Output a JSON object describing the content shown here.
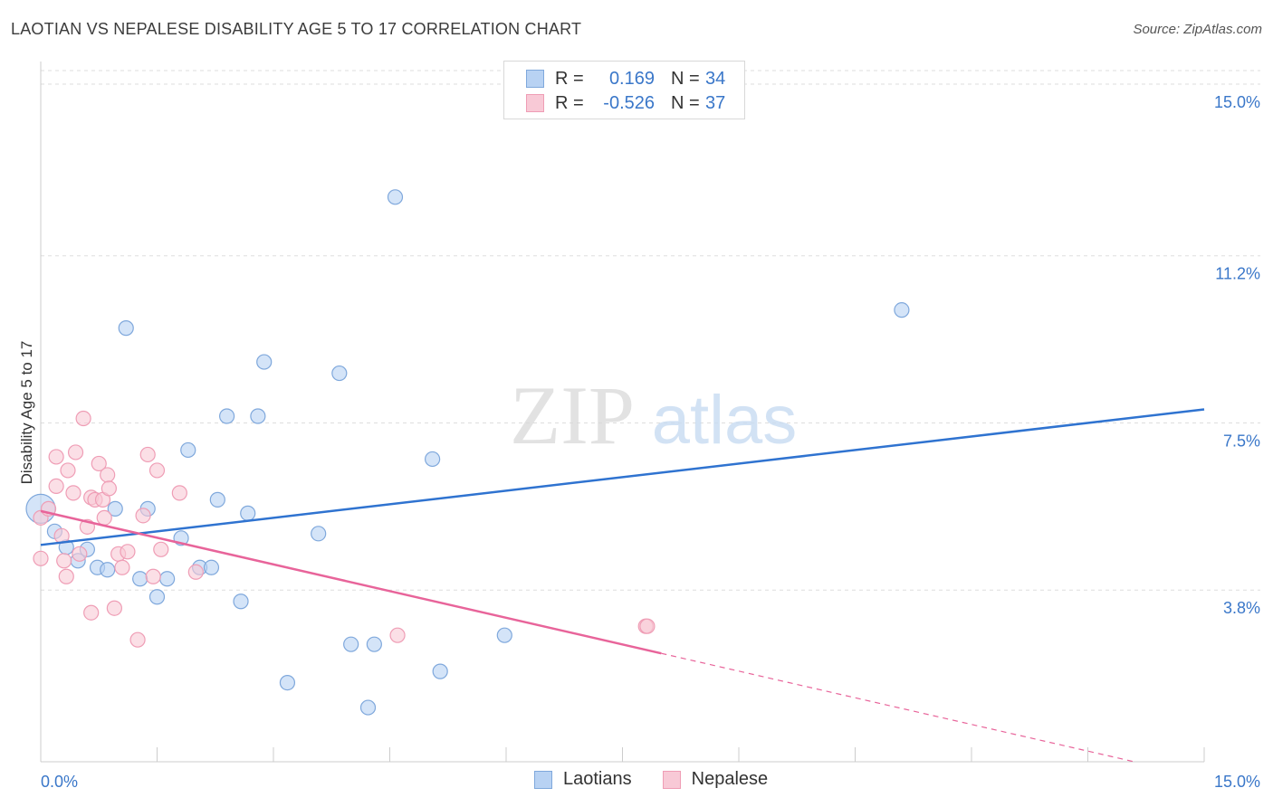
{
  "header": {
    "title": "LAOTIAN VS NEPALESE DISABILITY AGE 5 TO 17 CORRELATION CHART",
    "source": "Source: ZipAtlas.com"
  },
  "watermark": {
    "zip": "ZIP",
    "atlas": "atlas"
  },
  "colors": {
    "laotian_fill": "#b8d2f3",
    "laotian_stroke": "#7fa8dc",
    "laotian_line": "#2f73d0",
    "nepalese_fill": "#f8c9d6",
    "nepalese_stroke": "#ef9db5",
    "nepalese_line": "#e8649a",
    "value_text": "#3a77c9"
  },
  "legend_top": {
    "rows": [
      {
        "r_label": "R =",
        "r_value": "0.169",
        "n_label": "N =",
        "n_value": "34"
      },
      {
        "r_label": "R =",
        "r_value": "-0.526",
        "n_label": "N =",
        "n_value": "37"
      }
    ]
  },
  "legend_bottom": {
    "items": [
      "Laotians",
      "Nepalese"
    ]
  },
  "chart_data": {
    "type": "scatter",
    "title": "LAOTIAN VS NEPALESE DISABILITY AGE 5 TO 17 CORRELATION CHART",
    "xlabel": "",
    "ylabel": "Disability Age 5 to 17",
    "xlim": [
      0,
      15
    ],
    "ylim": [
      0,
      15.3
    ],
    "x_tick_labels": [
      "0.0%",
      "15.0%"
    ],
    "y_ticks": [
      3.8,
      7.5,
      11.2,
      15.0
    ],
    "y_tick_labels": [
      "3.8%",
      "7.5%",
      "11.2%",
      "15.0%"
    ],
    "grid": "horizontal dashed",
    "legend_position": "top-center",
    "series": [
      {
        "name": "Laotians",
        "points": [
          [
            0.0,
            5.6
          ],
          [
            0.18,
            5.1
          ],
          [
            0.33,
            4.75
          ],
          [
            0.48,
            4.45
          ],
          [
            0.6,
            4.7
          ],
          [
            0.73,
            4.3
          ],
          [
            0.86,
            4.25
          ],
          [
            0.96,
            5.6
          ],
          [
            1.1,
            9.6
          ],
          [
            1.28,
            4.05
          ],
          [
            1.38,
            5.6
          ],
          [
            1.5,
            3.65
          ],
          [
            1.63,
            4.05
          ],
          [
            1.81,
            4.95
          ],
          [
            1.9,
            6.9
          ],
          [
            2.05,
            4.3
          ],
          [
            2.2,
            4.3
          ],
          [
            2.28,
            5.8
          ],
          [
            2.4,
            7.65
          ],
          [
            2.58,
            3.55
          ],
          [
            2.67,
            5.5
          ],
          [
            2.8,
            7.65
          ],
          [
            2.88,
            8.85
          ],
          [
            3.18,
            1.75
          ],
          [
            3.58,
            5.05
          ],
          [
            3.85,
            8.6
          ],
          [
            4.0,
            2.6
          ],
          [
            4.22,
            1.2
          ],
          [
            4.3,
            2.6
          ],
          [
            4.57,
            12.5
          ],
          [
            5.05,
            6.7
          ],
          [
            5.15,
            2.0
          ],
          [
            5.98,
            2.8
          ],
          [
            11.1,
            10.0
          ]
        ],
        "trend": {
          "x0": 0,
          "y0": 4.8,
          "x1": 15,
          "y1": 7.8
        }
      },
      {
        "name": "Nepalese",
        "points": [
          [
            0.0,
            5.4
          ],
          [
            0.0,
            4.5
          ],
          [
            0.1,
            5.6
          ],
          [
            0.2,
            6.1
          ],
          [
            0.2,
            6.75
          ],
          [
            0.27,
            5.0
          ],
          [
            0.3,
            4.45
          ],
          [
            0.33,
            4.1
          ],
          [
            0.35,
            6.45
          ],
          [
            0.42,
            5.95
          ],
          [
            0.45,
            6.85
          ],
          [
            0.5,
            4.6
          ],
          [
            0.55,
            7.6
          ],
          [
            0.6,
            5.2
          ],
          [
            0.65,
            5.85
          ],
          [
            0.65,
            3.3
          ],
          [
            0.7,
            5.8
          ],
          [
            0.75,
            6.6
          ],
          [
            0.8,
            5.8
          ],
          [
            0.82,
            5.4
          ],
          [
            0.86,
            6.35
          ],
          [
            0.88,
            6.05
          ],
          [
            0.95,
            3.4
          ],
          [
            1.0,
            4.6
          ],
          [
            1.05,
            4.3
          ],
          [
            1.12,
            4.65
          ],
          [
            1.25,
            2.7
          ],
          [
            1.32,
            5.45
          ],
          [
            1.38,
            6.8
          ],
          [
            1.45,
            4.1
          ],
          [
            1.5,
            6.45
          ],
          [
            1.55,
            4.7
          ],
          [
            1.79,
            5.95
          ],
          [
            2.0,
            4.2
          ],
          [
            4.6,
            2.8
          ],
          [
            7.8,
            3.0
          ],
          [
            7.82,
            3.0
          ]
        ],
        "trend": {
          "x0": 0,
          "y0": 5.55,
          "x1": 8.0,
          "y1": 2.4,
          "dashed_to_x": 14.1,
          "dashed_to_y": 0.0
        }
      }
    ]
  }
}
